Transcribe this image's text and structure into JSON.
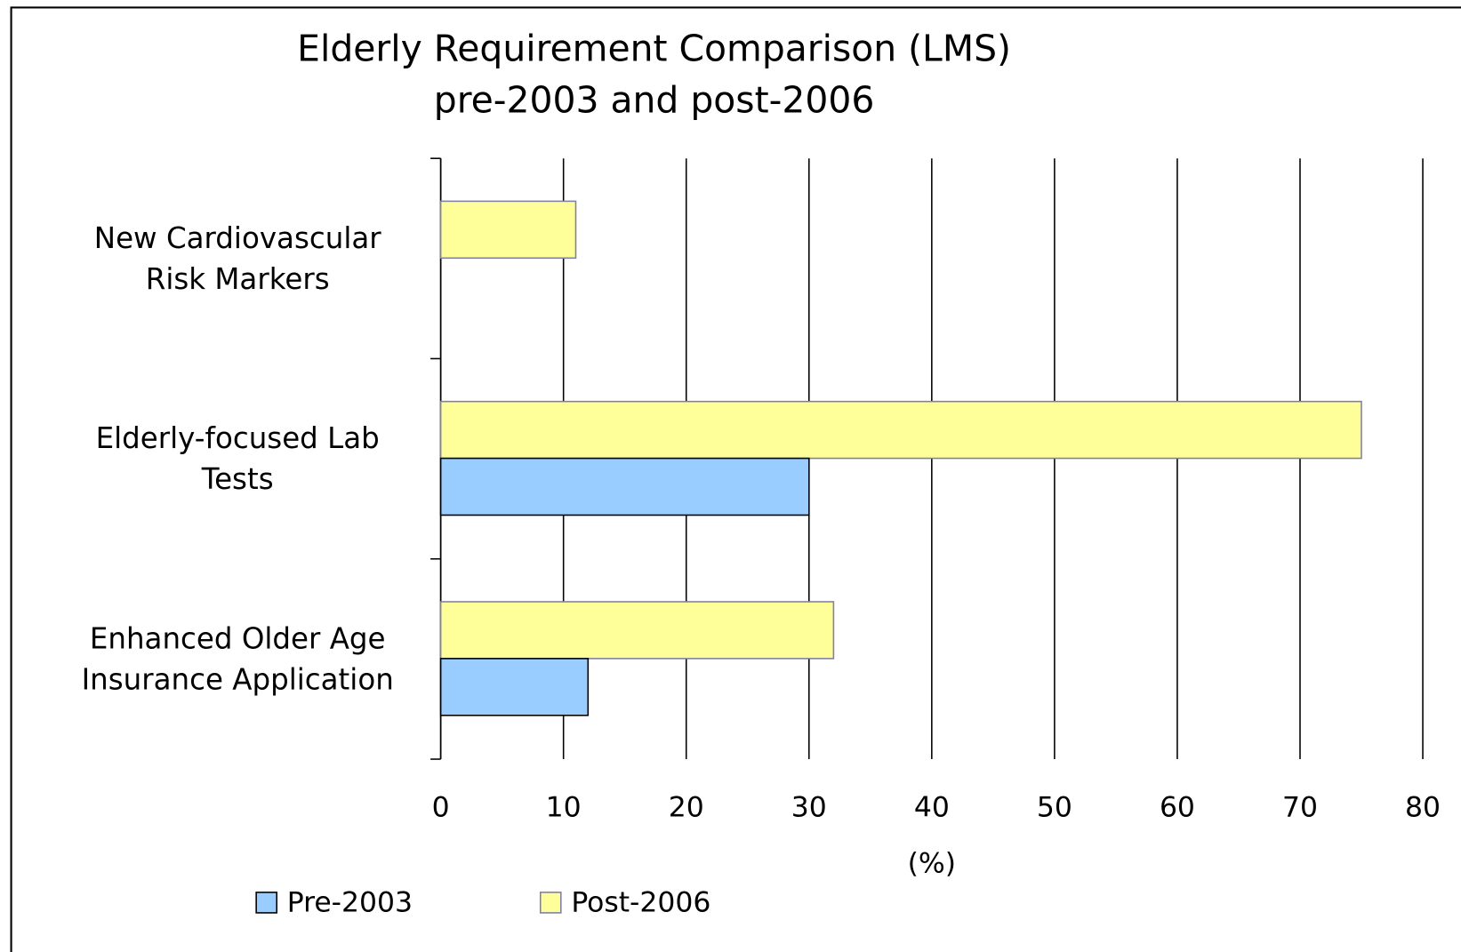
{
  "chart_data": {
    "type": "bar",
    "orientation": "horizontal",
    "title": "Elderly Requirement Comparison (LMS)",
    "subtitle": "pre-2003 and post-2006",
    "categories": [
      "New Cardiovascular\nRisk Markers",
      "Elderly-focused Lab\nTests",
      "Enhanced Older Age\nInsurance Application"
    ],
    "series": [
      {
        "name": "Pre-2003",
        "color": "#99ccff",
        "values": [
          0,
          30,
          12
        ]
      },
      {
        "name": "Post-2006",
        "color": "#ffff99",
        "values": [
          11,
          75,
          32
        ]
      }
    ],
    "x_label": "(%)",
    "xlim": [
      0,
      80
    ],
    "xticks": [
      0,
      10,
      20,
      30,
      40,
      50,
      60,
      70,
      80
    ],
    "grid": true,
    "legend": "bottom"
  }
}
